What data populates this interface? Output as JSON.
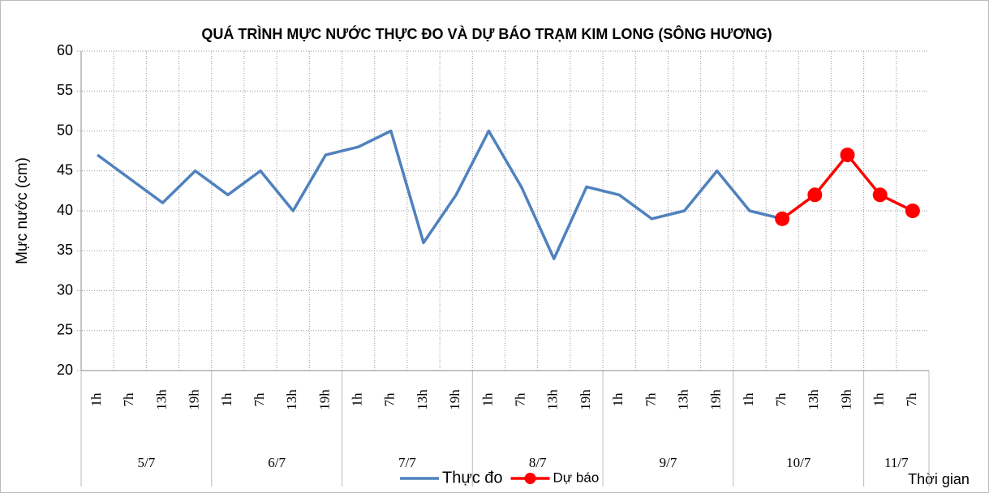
{
  "chart_data": {
    "type": "line",
    "title": "QUÁ TRÌNH MỰC NƯỚC THỰC ĐO VÀ DỰ BÁO TRẠM KIM LONG (SÔNG HƯƠNG)",
    "y_label": "Mực nước (cm)",
    "x_label": "Thời gian",
    "groups": [
      {
        "label": "5/7",
        "categories": [
          "1h",
          "7h",
          "13h",
          "19h"
        ]
      },
      {
        "label": "6/7",
        "categories": [
          "1h",
          "7h",
          "13h",
          "19h"
        ]
      },
      {
        "label": "7/7",
        "categories": [
          "1h",
          "7h",
          "13h",
          "19h"
        ]
      },
      {
        "label": "8/7",
        "categories": [
          "1h",
          "7h",
          "13h",
          "19h"
        ]
      },
      {
        "label": "9/7",
        "categories": [
          "1h",
          "7h",
          "13h",
          "19h"
        ]
      },
      {
        "label": "10/7",
        "categories": [
          "1h",
          "7h",
          "13h",
          "19h"
        ]
      },
      {
        "label": "11/7",
        "categories": [
          "1h",
          "7h"
        ]
      }
    ],
    "series": [
      {
        "name": "Thực đo",
        "color": "#4f81bd",
        "marker": false,
        "values": [
          47,
          44,
          41,
          45,
          42,
          45,
          40,
          47,
          48,
          50,
          36,
          42,
          50,
          43,
          34,
          43,
          42,
          39,
          40,
          45,
          40,
          39,
          null,
          null,
          null,
          null
        ]
      },
      {
        "name": "Dự báo",
        "color": "#ff0000",
        "marker": true,
        "values": [
          null,
          null,
          null,
          null,
          null,
          null,
          null,
          null,
          null,
          null,
          null,
          null,
          null,
          null,
          null,
          null,
          null,
          null,
          null,
          null,
          null,
          39,
          42,
          47,
          42,
          40
        ]
      }
    ],
    "ylim": [
      20,
      60
    ],
    "yticks": [
      20,
      25,
      30,
      35,
      40,
      45,
      50,
      55,
      60
    ],
    "grid": true
  }
}
